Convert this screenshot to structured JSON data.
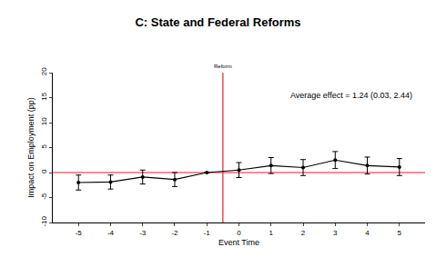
{
  "chart_data": {
    "type": "line",
    "title": "C: State and Federal Reforms",
    "x_label": "Event Time",
    "y_label": "Impact on Employment (pp)",
    "x": [
      -5,
      -4,
      -3,
      -2,
      -1,
      0,
      1,
      2,
      3,
      4,
      5
    ],
    "series": [
      {
        "name": "Impact on Employment",
        "color": "#000000",
        "marker": "circle",
        "line_style": "solid",
        "values": [
          -2.0,
          -1.9,
          -0.9,
          -1.4,
          0,
          0.5,
          1.4,
          1.0,
          2.5,
          1.4,
          1.1
        ],
        "lower": [
          -3.5,
          -3.3,
          -2.3,
          -2.8,
          0,
          -1.0,
          -0.2,
          -0.6,
          0.8,
          -0.3,
          -0.6
        ],
        "upper": [
          -0.5,
          -0.5,
          0.5,
          0.0,
          0,
          2.0,
          3.0,
          2.6,
          4.2,
          3.1,
          2.8
        ]
      }
    ],
    "xlim": [
      -5.8,
      5.8
    ],
    "xticks": [
      -5,
      -4,
      -3,
      -2,
      -1,
      0,
      1,
      2,
      3,
      4,
      5
    ],
    "ylim": [
      -10,
      20
    ],
    "yticks": [
      -10,
      -5,
      0,
      5,
      10,
      15,
      20
    ],
    "grid": false,
    "vline": {
      "x": -0.5,
      "label": "Reform",
      "color": "#e8202a"
    },
    "hline": {
      "y": 0,
      "color": "#e8202a"
    },
    "annotation": "Average effect = 1.24 (0.03, 2.44)"
  }
}
